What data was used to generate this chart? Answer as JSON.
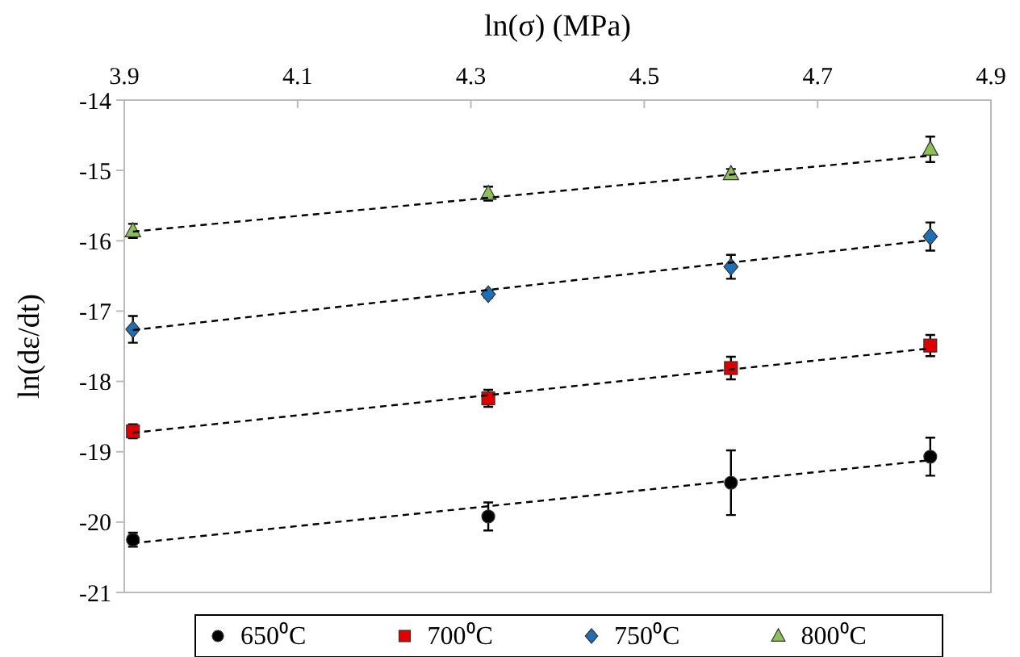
{
  "chart_data": {
    "type": "scatter",
    "xlabel": "ln(σ) (MPa)",
    "ylabel": "ln(dε/dt)",
    "xlim": [
      3.9,
      4.9
    ],
    "xticks": [
      3.9,
      4.1,
      4.3,
      4.5,
      4.7,
      4.9
    ],
    "ylim": [
      -21,
      -14
    ],
    "yticks": [
      -21,
      -20,
      -19,
      -18,
      -17,
      -16,
      -15,
      -14
    ],
    "grid": false,
    "legend": "bottom",
    "series": [
      {
        "name": "650⁰C",
        "color": "#000000",
        "marker": "circle",
        "x": [
          3.91,
          4.32,
          4.6,
          4.83
        ],
        "values": [
          -20.25,
          -19.92,
          -19.44,
          -19.07
        ],
        "errors": [
          0.1,
          0.2,
          0.46,
          0.27
        ]
      },
      {
        "name": "700⁰C",
        "color": "#e00000",
        "marker": "square",
        "x": [
          3.91,
          4.32,
          4.6,
          4.83
        ],
        "values": [
          -18.71,
          -18.24,
          -17.81,
          -17.49
        ],
        "errors": [
          0.1,
          0.12,
          0.16,
          0.15
        ]
      },
      {
        "name": "750⁰C",
        "color": "#1f6fb5",
        "marker": "diamond",
        "x": [
          3.91,
          4.32,
          4.6,
          4.83
        ],
        "values": [
          -17.26,
          -16.76,
          -16.37,
          -15.94
        ],
        "errors": [
          0.19,
          0.05,
          0.17,
          0.2
        ]
      },
      {
        "name": "800⁰C",
        "color": "#8fbf5a",
        "marker": "triangle",
        "x": [
          3.91,
          4.32,
          4.6,
          4.83
        ],
        "values": [
          -15.86,
          -15.33,
          -15.05,
          -14.7
        ],
        "errors": [
          0.1,
          0.1,
          0.07,
          0.18
        ]
      },
      {
        "type": "line",
        "color": "#000000",
        "line_style": "dashed",
        "x": [
          3.91,
          4.83
        ],
        "values": [
          -20.3,
          -19.12
        ]
      },
      {
        "type": "line",
        "color": "#000000",
        "line_style": "dashed",
        "x": [
          3.91,
          4.83
        ],
        "values": [
          -18.73,
          -17.53
        ]
      },
      {
        "type": "line",
        "color": "#000000",
        "line_style": "dashed",
        "x": [
          3.91,
          4.83
        ],
        "values": [
          -17.27,
          -15.99
        ]
      },
      {
        "type": "line",
        "color": "#000000",
        "line_style": "dashed",
        "x": [
          3.91,
          4.83
        ],
        "values": [
          -15.87,
          -14.79
        ]
      }
    ]
  }
}
